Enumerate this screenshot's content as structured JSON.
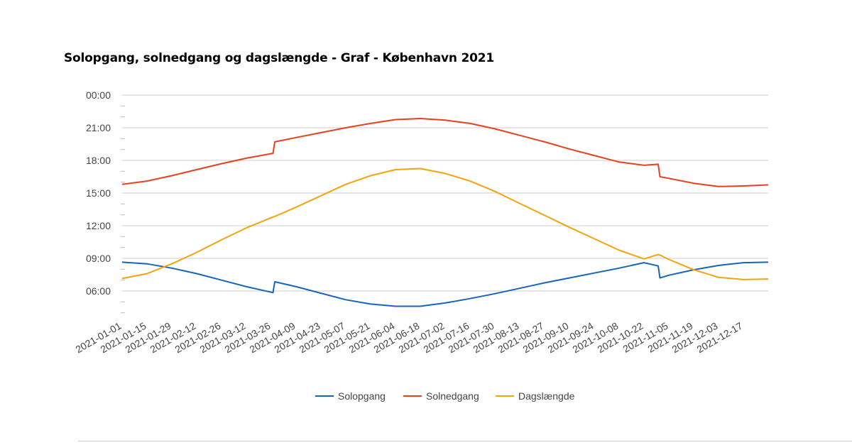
{
  "chart_data": {
    "type": "line",
    "title": "Solopgang, solnedgang og dagslængde - Graf - København 2021",
    "xlabel": "",
    "ylabel": "",
    "x_tick_labels": [
      "2021-01-01",
      "2021-01-15",
      "2021-01-29",
      "2021-02-12",
      "2021-02-26",
      "2021-03-12",
      "2021-03-26",
      "2021-04-09",
      "2021-04-23",
      "2021-05-07",
      "2021-05-21",
      "2021-06-04",
      "2021-06-18",
      "2021-07-02",
      "2021-07-16",
      "2021-07-30",
      "2021-08-13",
      "2021-08-27",
      "2021-09-10",
      "2021-09-24",
      "2021-10-08",
      "2021-10-22",
      "2021-11-05",
      "2021-11-19",
      "2021-12-03",
      "2021-12-17"
    ],
    "y_tick_labels": [
      "00:00",
      "21:00",
      "18:00",
      "15:00",
      "12:00",
      "09:00",
      "06:00"
    ],
    "y_tick_values_hours": [
      24,
      21,
      18,
      15,
      12,
      9,
      6
    ],
    "ylim_hours": [
      3,
      24
    ],
    "x_range": [
      "2021-01-01",
      "2021-12-31"
    ],
    "legend_position": "bottom",
    "grid": true,
    "x": [
      "2021-01-01",
      "2021-01-15",
      "2021-01-29",
      "2021-02-12",
      "2021-02-26",
      "2021-03-12",
      "2021-03-27",
      "2021-03-28",
      "2021-04-09",
      "2021-04-23",
      "2021-05-07",
      "2021-05-21",
      "2021-06-04",
      "2021-06-18",
      "2021-07-02",
      "2021-07-16",
      "2021-07-30",
      "2021-08-13",
      "2021-08-27",
      "2021-09-10",
      "2021-09-24",
      "2021-10-08",
      "2021-10-22",
      "2021-10-30",
      "2021-10-31",
      "2021-11-05",
      "2021-11-19",
      "2021-12-03",
      "2021-12-17",
      "2021-12-31"
    ],
    "series": [
      {
        "name": "Solopgang",
        "color": "#1565c0",
        "values": [
          8.65,
          8.5,
          8.1,
          7.6,
          7.0,
          6.4,
          5.85,
          6.85,
          6.4,
          5.8,
          5.2,
          4.8,
          4.6,
          4.6,
          4.9,
          5.3,
          5.75,
          6.25,
          6.75,
          7.2,
          7.65,
          8.1,
          8.6,
          8.3,
          7.2,
          7.45,
          7.95,
          8.35,
          8.6,
          8.65
        ]
      },
      {
        "name": "Solnedgang",
        "color": "#e8401c",
        "values": [
          15.8,
          16.1,
          16.6,
          17.15,
          17.7,
          18.2,
          18.65,
          19.7,
          20.1,
          20.55,
          21.0,
          21.4,
          21.75,
          21.85,
          21.7,
          21.4,
          20.9,
          20.3,
          19.7,
          19.05,
          18.45,
          17.85,
          17.55,
          17.65,
          16.5,
          16.35,
          15.9,
          15.6,
          15.65,
          15.75
        ]
      },
      {
        "name": "Dagslængde",
        "color": "#f5a30a",
        "values": [
          7.15,
          7.6,
          8.5,
          9.55,
          10.7,
          11.8,
          12.8,
          12.85,
          13.7,
          14.75,
          15.8,
          16.6,
          17.15,
          17.25,
          16.8,
          16.1,
          15.15,
          14.05,
          12.95,
          11.85,
          10.8,
          9.75,
          8.95,
          9.35,
          9.3,
          8.9,
          7.95,
          7.25,
          7.05,
          7.1
        ]
      }
    ]
  }
}
